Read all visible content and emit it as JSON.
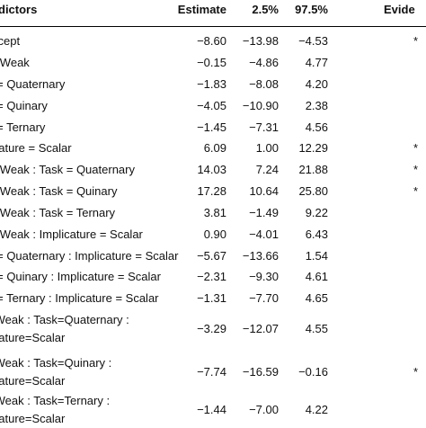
{
  "headers": {
    "predictors": "dictors",
    "estimate": "Estimate",
    "lower": "2.5%",
    "upper": "97.5%",
    "evidence": "Evide"
  },
  "rows": [
    {
      "predictor": [
        "ercept"
      ],
      "estimate": "−8.60",
      "lower": "−13.98",
      "upper": "−4.53",
      "evidence": "*"
    },
    {
      "predictor": [
        " = Weak"
      ],
      "estimate": "−0.15",
      "lower": "−4.86",
      "upper": "4.77",
      "evidence": ""
    },
    {
      "predictor": [
        "k = Quaternary"
      ],
      "estimate": "−1.83",
      "lower": "−8.08",
      "upper": "4.20",
      "evidence": ""
    },
    {
      "predictor": [
        "k = Quinary"
      ],
      "estimate": "−4.05",
      "lower": "−10.90",
      "upper": "2.38",
      "evidence": ""
    },
    {
      "predictor": [
        "k = Ternary"
      ],
      "estimate": "−1.45",
      "lower": "−7.31",
      "upper": "4.56",
      "evidence": ""
    },
    {
      "predictor": [
        "licature = Scalar"
      ],
      "estimate": "6.09",
      "lower": "1.00",
      "upper": "12.29",
      "evidence": "*"
    },
    {
      "predictor": [
        " = Weak : Task = Quaternary"
      ],
      "estimate": "14.03",
      "lower": "7.24",
      "upper": "21.88",
      "evidence": "*"
    },
    {
      "predictor": [
        " = Weak : Task = Quinary"
      ],
      "estimate": "17.28",
      "lower": "10.64",
      "upper": "25.80",
      "evidence": "*"
    },
    {
      "predictor": [
        " = Weak : Task = Ternary"
      ],
      "estimate": "3.81",
      "lower": "−1.49",
      "upper": "9.22",
      "evidence": ""
    },
    {
      "predictor": [
        " = Weak : Implicature = Scalar"
      ],
      "estimate": "0.90",
      "lower": "−4.01",
      "upper": "6.43",
      "evidence": ""
    },
    {
      "predictor": [
        "k = Quaternary : Implicature = Scalar"
      ],
      "estimate": "−5.67",
      "lower": "−13.66",
      "upper": "1.54",
      "evidence": ""
    },
    {
      "predictor": [
        "k = Quinary : Implicature = Scalar"
      ],
      "estimate": "−2.31",
      "lower": "−9.30",
      "upper": "4.61",
      "evidence": ""
    },
    {
      "predictor": [
        "k = Ternary : Implicature = Scalar"
      ],
      "estimate": "−1.31",
      "lower": "−7.70",
      "upper": "4.65",
      "evidence": ""
    },
    {
      "predictor": [
        "=Weak : Task=Quaternary :",
        "licature=Scalar"
      ],
      "estimate": "−3.29",
      "lower": "−12.07",
      "upper": "4.55",
      "evidence": ""
    },
    {
      "predictor": [
        "=Weak : Task=Quinary :",
        "licature=Scalar"
      ],
      "estimate": "−7.74",
      "lower": "−16.59",
      "upper": "−0.16",
      "evidence": "*"
    },
    {
      "predictor": [
        "=Weak : Task=Ternary :",
        "licature=Scalar"
      ],
      "estimate": "−1.44",
      "lower": "−7.00",
      "upper": "4.22",
      "evidence": ""
    }
  ]
}
